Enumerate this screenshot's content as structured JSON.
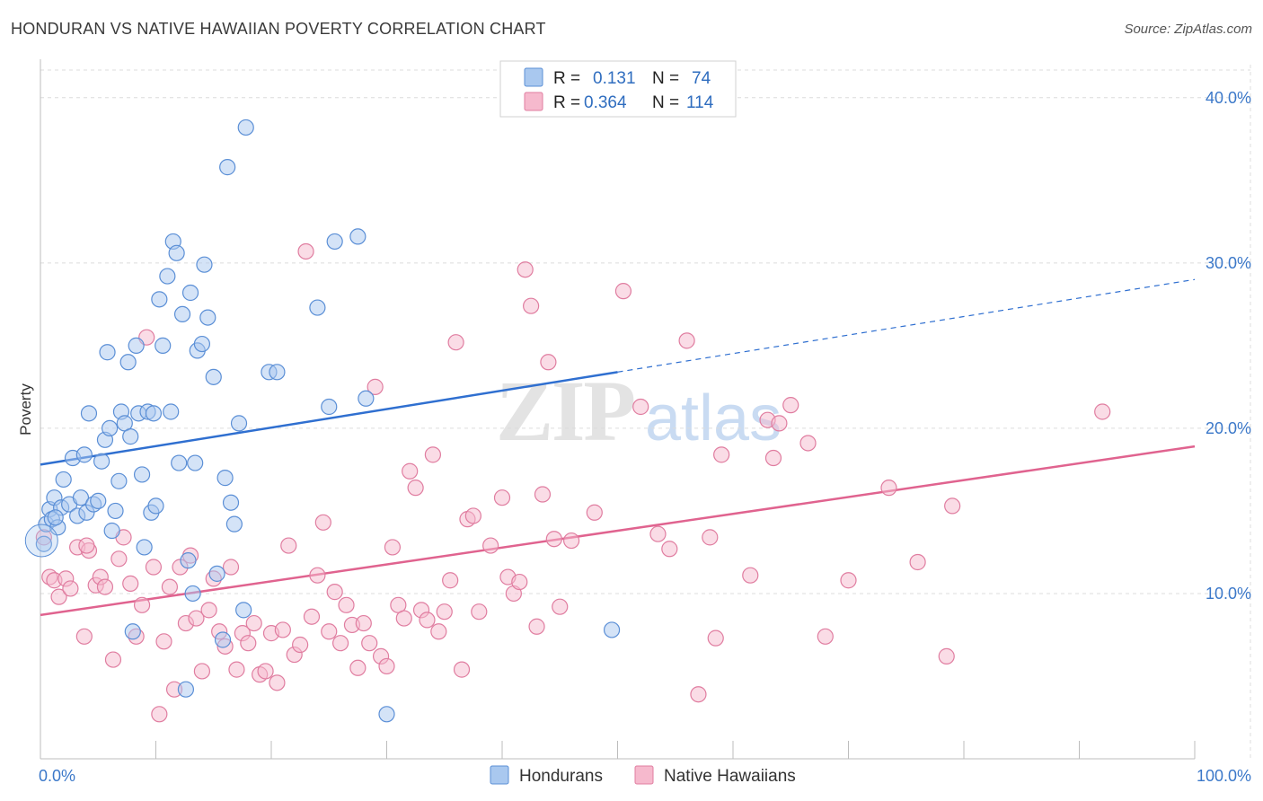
{
  "title": "HONDURAN VS NATIVE HAWAIIAN POVERTY CORRELATION CHART",
  "source": "Source: ZipAtlas.com",
  "watermark": {
    "zip": "ZIP",
    "atlas": "atlas"
  },
  "colors": {
    "hondurans_fill": "#a9c8ef",
    "hondurans_stroke": "#5b8fd6",
    "hondurans_line": "#2f6fd0",
    "hawaiians_fill": "#f6b9cd",
    "hawaiians_stroke": "#e07da0",
    "hawaiians_line": "#e0638f",
    "axis_text": "#3b78c9"
  },
  "legend": {
    "rows": [
      {
        "r_label": "R =",
        "r_value": "0.131",
        "n_label": "N =",
        "n_value": "74"
      },
      {
        "r_label": "R =",
        "r_value": "0.364",
        "n_label": "N =",
        "n_value": "114"
      }
    ]
  },
  "chart_data": {
    "type": "scatter",
    "title": "HONDURAN VS NATIVE HAWAIIAN POVERTY CORRELATION CHART",
    "xlabel": "",
    "ylabel": "Poverty",
    "xlim": [
      0,
      100
    ],
    "ylim": [
      0,
      42
    ],
    "x_tick_labels": [
      "0.0%",
      "100.0%"
    ],
    "y_ticks": [
      10,
      20,
      30,
      40
    ],
    "y_tick_labels": [
      "10.0%",
      "20.0%",
      "30.0%",
      "40.0%"
    ],
    "grid": true,
    "series": [
      {
        "name": "Hondurans",
        "trend": {
          "x0": 0,
          "y0": 17.8,
          "x1": 50,
          "y1": 23.4,
          "dashed_to_x": 100,
          "dashed_to_y": 29.0
        },
        "points": [
          [
            0.3,
            13.0
          ],
          [
            0.5,
            14.2
          ],
          [
            0.8,
            15.1
          ],
          [
            1.0,
            14.5
          ],
          [
            1.2,
            15.8
          ],
          [
            1.5,
            14.0
          ],
          [
            1.8,
            15.2
          ],
          [
            2.0,
            16.9
          ],
          [
            2.5,
            15.4
          ],
          [
            2.8,
            18.2
          ],
          [
            3.2,
            14.7
          ],
          [
            3.5,
            15.8
          ],
          [
            3.8,
            18.4
          ],
          [
            4.0,
            14.9
          ],
          [
            4.2,
            20.9
          ],
          [
            4.6,
            15.4
          ],
          [
            5.0,
            15.6
          ],
          [
            5.3,
            18.0
          ],
          [
            5.6,
            19.3
          ],
          [
            5.8,
            24.6
          ],
          [
            6.0,
            20.0
          ],
          [
            6.5,
            15.0
          ],
          [
            6.8,
            16.8
          ],
          [
            7.0,
            21.0
          ],
          [
            7.3,
            20.3
          ],
          [
            7.6,
            24.0
          ],
          [
            7.8,
            19.5
          ],
          [
            8.0,
            7.7
          ],
          [
            8.3,
            25.0
          ],
          [
            8.5,
            20.9
          ],
          [
            8.8,
            17.2
          ],
          [
            9.0,
            12.8
          ],
          [
            9.3,
            21.0
          ],
          [
            9.6,
            14.9
          ],
          [
            9.8,
            20.9
          ],
          [
            10.0,
            15.3
          ],
          [
            10.3,
            27.8
          ],
          [
            10.6,
            25.0
          ],
          [
            11.0,
            29.2
          ],
          [
            11.3,
            21.0
          ],
          [
            11.5,
            31.3
          ],
          [
            11.8,
            30.6
          ],
          [
            12.0,
            17.9
          ],
          [
            12.3,
            26.9
          ],
          [
            12.6,
            4.2
          ],
          [
            12.8,
            12.0
          ],
          [
            13.0,
            28.2
          ],
          [
            13.2,
            10.0
          ],
          [
            13.4,
            17.9
          ],
          [
            13.6,
            24.7
          ],
          [
            14.0,
            25.1
          ],
          [
            14.2,
            29.9
          ],
          [
            14.5,
            26.7
          ],
          [
            15.0,
            23.1
          ],
          [
            15.3,
            11.2
          ],
          [
            15.8,
            7.2
          ],
          [
            16.0,
            17.0
          ],
          [
            16.2,
            35.8
          ],
          [
            16.5,
            15.5
          ],
          [
            16.8,
            14.2
          ],
          [
            17.2,
            20.3
          ],
          [
            17.6,
            9.0
          ],
          [
            17.8,
            38.2
          ],
          [
            19.8,
            23.4
          ],
          [
            20.5,
            23.4
          ],
          [
            24.0,
            27.3
          ],
          [
            25.0,
            21.3
          ],
          [
            25.5,
            31.3
          ],
          [
            27.5,
            31.6
          ],
          [
            28.2,
            21.8
          ],
          [
            30.0,
            2.7
          ],
          [
            49.5,
            7.8
          ],
          [
            1.3,
            14.6
          ],
          [
            6.2,
            13.8
          ]
        ]
      },
      {
        "name": "Native Hawaiians",
        "trend": {
          "x0": 0,
          "y0": 8.7,
          "x1": 100,
          "y1": 18.9
        },
        "points": [
          [
            0.3,
            13.4
          ],
          [
            0.8,
            11.0
          ],
          [
            1.2,
            10.8
          ],
          [
            1.6,
            9.8
          ],
          [
            2.2,
            10.9
          ],
          [
            2.6,
            10.3
          ],
          [
            3.2,
            12.8
          ],
          [
            3.8,
            7.4
          ],
          [
            4.2,
            12.6
          ],
          [
            4.8,
            10.5
          ],
          [
            5.2,
            11.0
          ],
          [
            5.6,
            10.4
          ],
          [
            6.3,
            6.0
          ],
          [
            6.8,
            12.1
          ],
          [
            7.2,
            13.4
          ],
          [
            7.8,
            10.6
          ],
          [
            8.3,
            7.4
          ],
          [
            8.8,
            9.3
          ],
          [
            9.2,
            25.5
          ],
          [
            9.8,
            11.6
          ],
          [
            10.3,
            2.7
          ],
          [
            10.7,
            7.1
          ],
          [
            11.2,
            10.4
          ],
          [
            11.6,
            4.2
          ],
          [
            12.1,
            11.6
          ],
          [
            12.6,
            8.2
          ],
          [
            13.0,
            12.3
          ],
          [
            13.5,
            8.5
          ],
          [
            14.0,
            5.3
          ],
          [
            14.6,
            9.0
          ],
          [
            15.0,
            10.9
          ],
          [
            15.5,
            7.7
          ],
          [
            16.0,
            6.8
          ],
          [
            16.5,
            11.6
          ],
          [
            17.0,
            5.4
          ],
          [
            17.5,
            7.6
          ],
          [
            18.0,
            7.0
          ],
          [
            18.5,
            8.2
          ],
          [
            19.0,
            5.1
          ],
          [
            19.5,
            5.3
          ],
          [
            20.0,
            7.6
          ],
          [
            20.5,
            4.6
          ],
          [
            21.0,
            7.8
          ],
          [
            21.5,
            12.9
          ],
          [
            22.0,
            6.3
          ],
          [
            22.5,
            6.9
          ],
          [
            23.0,
            30.7
          ],
          [
            23.5,
            8.6
          ],
          [
            24.0,
            11.1
          ],
          [
            24.5,
            14.3
          ],
          [
            25.0,
            7.7
          ],
          [
            25.5,
            10.1
          ],
          [
            26.0,
            7.0
          ],
          [
            26.5,
            9.3
          ],
          [
            27.0,
            8.1
          ],
          [
            27.5,
            5.5
          ],
          [
            28.0,
            8.2
          ],
          [
            28.5,
            7.0
          ],
          [
            29.0,
            22.5
          ],
          [
            29.5,
            6.2
          ],
          [
            30.0,
            5.6
          ],
          [
            30.5,
            12.8
          ],
          [
            31.0,
            9.3
          ],
          [
            31.5,
            8.5
          ],
          [
            32.0,
            17.4
          ],
          [
            32.5,
            16.4
          ],
          [
            33.0,
            9.0
          ],
          [
            33.5,
            8.4
          ],
          [
            34.0,
            18.4
          ],
          [
            34.5,
            7.7
          ],
          [
            35.0,
            8.9
          ],
          [
            35.5,
            10.8
          ],
          [
            36.0,
            25.2
          ],
          [
            36.5,
            5.4
          ],
          [
            37.0,
            14.5
          ],
          [
            37.5,
            14.7
          ],
          [
            38.0,
            8.9
          ],
          [
            39.0,
            12.9
          ],
          [
            40.0,
            15.8
          ],
          [
            40.5,
            11.0
          ],
          [
            41.0,
            10.0
          ],
          [
            41.5,
            10.7
          ],
          [
            42.0,
            29.6
          ],
          [
            42.5,
            27.4
          ],
          [
            43.0,
            8.0
          ],
          [
            43.5,
            16.0
          ],
          [
            44.0,
            24.0
          ],
          [
            44.5,
            13.3
          ],
          [
            45.0,
            9.2
          ],
          [
            46.0,
            13.2
          ],
          [
            48.0,
            14.9
          ],
          [
            50.5,
            28.3
          ],
          [
            52.0,
            21.3
          ],
          [
            53.5,
            13.6
          ],
          [
            54.5,
            12.7
          ],
          [
            56.0,
            25.3
          ],
          [
            57.0,
            3.9
          ],
          [
            58.0,
            13.4
          ],
          [
            58.5,
            7.3
          ],
          [
            59.0,
            18.4
          ],
          [
            61.5,
            11.1
          ],
          [
            63.0,
            20.5
          ],
          [
            63.5,
            18.2
          ],
          [
            64.0,
            20.3
          ],
          [
            65.0,
            21.4
          ],
          [
            66.5,
            19.1
          ],
          [
            68.0,
            7.4
          ],
          [
            70.0,
            10.8
          ],
          [
            73.5,
            16.4
          ],
          [
            76.0,
            11.9
          ],
          [
            78.5,
            6.2
          ],
          [
            79.0,
            15.3
          ],
          [
            92.0,
            21.0
          ],
          [
            4.0,
            12.9
          ]
        ]
      }
    ]
  },
  "bottom_legend": {
    "hondurans": "Hondurans",
    "hawaiians": "Native Hawaiians"
  }
}
